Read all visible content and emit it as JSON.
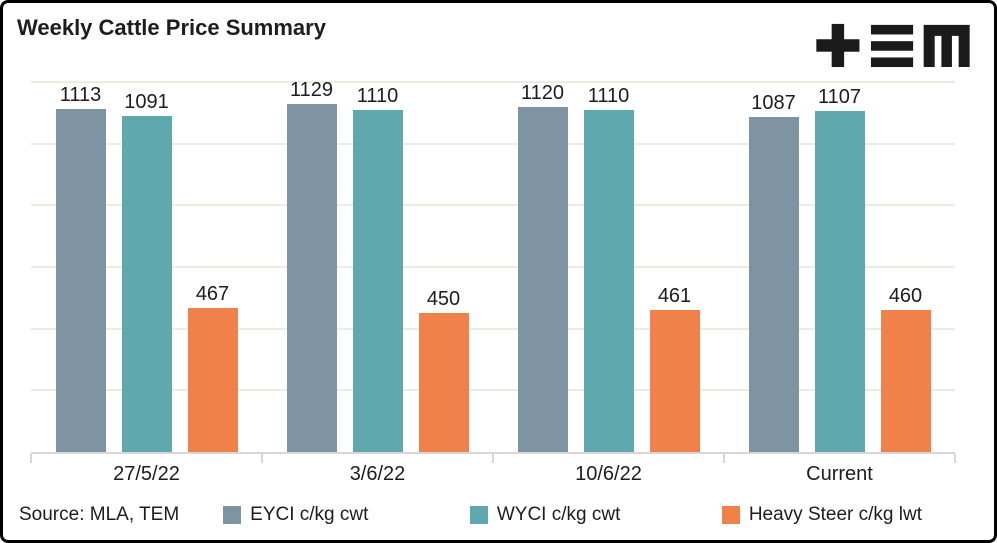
{
  "chart_data": {
    "type": "bar",
    "title": "Weekly Cattle Price Summary",
    "categories": [
      "27/5/22",
      "3/6/22",
      "10/6/22",
      "Current"
    ],
    "series": [
      {
        "name": "EYCI c/kg cwt",
        "color": "#7e94a3",
        "values": [
          1113,
          1129,
          1120,
          1087
        ]
      },
      {
        "name": "WYCI c/kg cwt",
        "color": "#5fa8ae",
        "values": [
          1091,
          1110,
          1110,
          1107
        ]
      },
      {
        "name": "Heavy Steer c/kg lwt",
        "color": "#f0814b",
        "values": [
          467,
          450,
          461,
          460
        ]
      }
    ],
    "xlabel": "",
    "ylabel": "",
    "ylim": [
      0,
      1200
    ],
    "gridline_step": 200,
    "grid": true,
    "legend_position": "bottom",
    "data_labels": true
  },
  "footer": {
    "source": "Source: MLA, TEM"
  },
  "logo": {
    "name": "TEM"
  },
  "colors": {
    "gridline": "#ebede0",
    "axis": "#d7d7d7",
    "text": "#1d1d1d",
    "background": "#ffffff",
    "border": "#000000",
    "logo": "#1a1a1a"
  }
}
